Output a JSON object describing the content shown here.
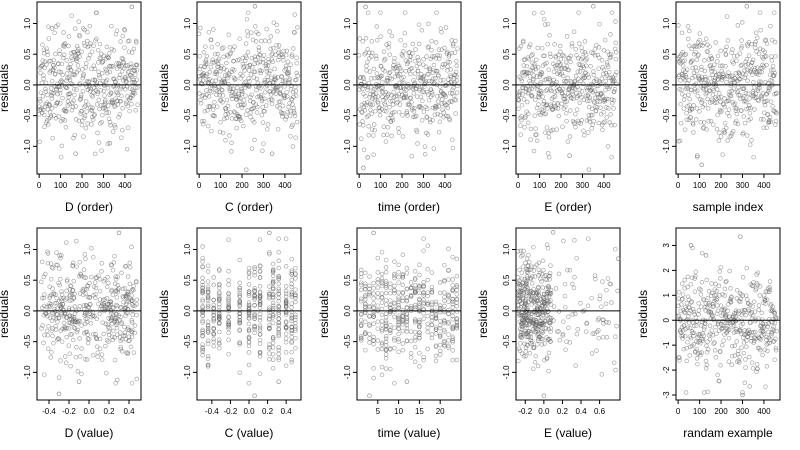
{
  "chart_data": [
    {
      "id": "d-order",
      "type": "scatter",
      "title": "",
      "xlabel": "D (order)",
      "ylabel": "residuals",
      "xlim": [
        -10,
        475
      ],
      "ylim": [
        -1.45,
        1.35
      ],
      "xticks": [
        0,
        100,
        200,
        300,
        400
      ],
      "yticks": [
        -1.0,
        -0.5,
        0.0,
        0.5,
        1.0
      ],
      "ytick_labels": [
        "-1.0",
        "-0.5",
        "0.0",
        "0.5",
        "1.0"
      ],
      "hline": 0,
      "n": 460,
      "sd": 0.42,
      "xdist": "index",
      "seed": 11,
      "marks": [
        {
          "x": 432,
          "y": 1.27
        },
        {
          "x": 170,
          "y": -1.12
        },
        {
          "x": 60,
          "y": 0.92
        },
        {
          "x": 330,
          "y": -0.95
        }
      ]
    },
    {
      "id": "c-order",
      "type": "scatter",
      "title": "",
      "xlabel": "C (order)",
      "ylabel": "residuals",
      "xlim": [
        -10,
        475
      ],
      "ylim": [
        -1.45,
        1.35
      ],
      "xticks": [
        0,
        100,
        200,
        300,
        400
      ],
      "yticks": [
        -1.0,
        -0.5,
        0.0,
        0.5,
        1.0
      ],
      "ytick_labels": [
        "-1.0",
        "-0.5",
        "0.0",
        "0.5",
        "1.0"
      ],
      "hline": 0,
      "n": 460,
      "sd": 0.42,
      "xdist": "index",
      "seed": 23,
      "marks": [
        {
          "x": 260,
          "y": 1.28
        },
        {
          "x": 220,
          "y": -1.38
        },
        {
          "x": 340,
          "y": -1.12
        }
      ]
    },
    {
      "id": "time-order",
      "type": "scatter",
      "title": "",
      "xlabel": "time (order)",
      "ylabel": "residuals",
      "xlim": [
        -10,
        475
      ],
      "ylim": [
        -1.45,
        1.35
      ],
      "xticks": [
        0,
        100,
        200,
        300,
        400
      ],
      "yticks": [
        -1.0,
        -0.5,
        0.0,
        0.5,
        1.0
      ],
      "ytick_labels": [
        "-1.0",
        "-0.5",
        "0.0",
        "0.5",
        "1.0"
      ],
      "hline": 0,
      "n": 460,
      "sd": 0.42,
      "xdist": "index",
      "seed": 37,
      "marks": [
        {
          "x": 30,
          "y": 1.27
        },
        {
          "x": 20,
          "y": -1.35
        },
        {
          "x": 40,
          "y": -1.18
        }
      ]
    },
    {
      "id": "e-order",
      "type": "scatter",
      "title": "",
      "xlabel": "E (order)",
      "ylabel": "residuals",
      "xlim": [
        -10,
        475
      ],
      "ylim": [
        -1.45,
        1.35
      ],
      "xticks": [
        0,
        100,
        200,
        300,
        400
      ],
      "yticks": [
        -1.0,
        -0.5,
        0.0,
        0.5,
        1.0
      ],
      "ytick_labels": [
        "-1.0",
        "-0.5",
        "0.0",
        "0.5",
        "1.0"
      ],
      "hline": 0,
      "n": 460,
      "sd": 0.42,
      "xdist": "index",
      "seed": 41,
      "marks": [
        {
          "x": 350,
          "y": 1.28
        },
        {
          "x": 240,
          "y": -1.15
        },
        {
          "x": 330,
          "y": -1.38
        }
      ]
    },
    {
      "id": "sample-index",
      "type": "scatter",
      "title": "",
      "xlabel": "sample index",
      "ylabel": "residuals",
      "xlim": [
        -10,
        475
      ],
      "ylim": [
        -1.45,
        1.35
      ],
      "xticks": [
        0,
        100,
        200,
        300,
        400
      ],
      "yticks": [
        -1.0,
        -0.5,
        0.0,
        0.5,
        1.0
      ],
      "ytick_labels": [
        "-1.0",
        "-0.5",
        "0.0",
        "0.5",
        "1.0"
      ],
      "hline": 0,
      "n": 460,
      "sd": 0.42,
      "xdist": "index",
      "seed": 53,
      "marks": [
        {
          "x": 320,
          "y": 1.28
        },
        {
          "x": 90,
          "y": -1.15
        },
        {
          "x": 110,
          "y": -1.3
        }
      ]
    },
    {
      "id": "d-value",
      "type": "scatter",
      "title": "",
      "xlabel": "D (value)",
      "ylabel": "residuals",
      "xlim": [
        -0.52,
        0.52
      ],
      "ylim": [
        -1.45,
        1.35
      ],
      "xticks": [
        -0.4,
        -0.2,
        0.0,
        0.2,
        0.4
      ],
      "xtick_labels": [
        "-0.4",
        "-0.2",
        "0.0",
        "0.2",
        "0.4"
      ],
      "yticks": [
        -1.0,
        -0.5,
        0.0,
        0.5,
        1.0
      ],
      "ytick_labels": [
        "-1.0",
        "-0.5",
        "0.0",
        "0.5",
        "1.0"
      ],
      "hline": 0,
      "n": 460,
      "sd": 0.42,
      "xdist": "cont",
      "xspan": [
        -0.48,
        0.48
      ],
      "seed": 61,
      "marks": [
        {
          "x": 0.3,
          "y": 1.27
        },
        {
          "x": -0.1,
          "y": -1.15
        },
        {
          "x": -0.3,
          "y": -1.35
        }
      ]
    },
    {
      "id": "c-value",
      "type": "scatter",
      "title": "",
      "xlabel": "C (value)",
      "ylabel": "residuals",
      "xlim": [
        -0.56,
        0.56
      ],
      "ylim": [
        -1.45,
        1.35
      ],
      "xticks": [
        -0.4,
        -0.2,
        0.0,
        0.2,
        0.4
      ],
      "xtick_labels": [
        "-0.4",
        "-0.2",
        "0.0",
        "0.2",
        "0.4"
      ],
      "yticks": [
        -1.0,
        -0.5,
        0.0,
        0.5,
        1.0
      ],
      "ytick_labels": [
        "-1.0",
        "-0.5",
        "0.0",
        "0.5",
        "1.0"
      ],
      "hline": 0,
      "n": 460,
      "sd": 0.42,
      "xdist": "levels",
      "levels": [
        -0.5,
        -0.44,
        -0.38,
        -0.32,
        -0.22,
        -0.1,
        0,
        0.06,
        0.12,
        0.22,
        0.26,
        0.32,
        0.4,
        0.46,
        0.5
      ],
      "seed": 71,
      "marks": [
        {
          "x": 0.22,
          "y": 1.27
        },
        {
          "x": 0.06,
          "y": -1.38
        },
        {
          "x": 0.32,
          "y": -1.15
        }
      ]
    },
    {
      "id": "time-value",
      "type": "scatter",
      "title": "",
      "xlabel": "time (value)",
      "ylabel": "residuals",
      "xlim": [
        0,
        25
      ],
      "ylim": [
        -1.45,
        1.35
      ],
      "xticks": [
        5,
        10,
        15,
        20
      ],
      "yticks": [
        -1.0,
        -0.5,
        0.0,
        0.5,
        1.0
      ],
      "ytick_labels": [
        "-1.0",
        "-0.5",
        "0.0",
        "0.5",
        "1.0"
      ],
      "hline": 0,
      "n": 460,
      "sd": 0.42,
      "xdist": "levels",
      "levels": [
        1,
        2,
        3,
        4,
        5,
        6,
        7,
        8,
        9,
        10,
        11,
        12,
        13,
        14,
        15,
        16,
        17,
        18,
        19,
        20,
        21,
        22,
        23,
        24
      ],
      "seed": 83,
      "marks": [
        {
          "x": 4,
          "y": 1.27
        },
        {
          "x": 3,
          "y": -1.38
        },
        {
          "x": 12,
          "y": -1.15
        }
      ]
    },
    {
      "id": "e-value",
      "type": "scatter",
      "title": "",
      "xlabel": "E (value)",
      "ylabel": "residuals",
      "xlim": [
        -0.3,
        0.82
      ],
      "ylim": [
        -1.45,
        1.35
      ],
      "xticks": [
        -0.2,
        0.0,
        0.2,
        0.4,
        0.6
      ],
      "xtick_labels": [
        "-0.2",
        "0.0",
        "0.2",
        "0.4",
        "0.6"
      ],
      "yticks": [
        -1.0,
        -0.5,
        0.0,
        0.5,
        1.0
      ],
      "ytick_labels": [
        "-1.0",
        "-0.5",
        "0.0",
        "0.5",
        "1.0"
      ],
      "hline": 0,
      "n": 460,
      "sd": 0.42,
      "xdist": "skew",
      "xspan": [
        -0.28,
        0.8
      ],
      "seed": 97,
      "marks": [
        {
          "x": 0.1,
          "y": 1.28
        },
        {
          "x": 0.8,
          "y": 0.85
        },
        {
          "x": 0,
          "y": -1.38
        }
      ]
    },
    {
      "id": "random-example",
      "type": "scatter",
      "title": "",
      "xlabel": "randam example",
      "ylabel": "residuals",
      "xlim": [
        -10,
        475
      ],
      "ylim": [
        -3.2,
        3.7
      ],
      "xticks": [
        0,
        100,
        200,
        300,
        400
      ],
      "yticks": [
        -3,
        -2,
        -1,
        0,
        1,
        2,
        3
      ],
      "ytick_labels": [
        "-3",
        "-2",
        "-1",
        "0",
        "1",
        "2",
        "3"
      ],
      "hline": 0,
      "n": 460,
      "sd": 1.0,
      "xdist": "index",
      "seed": 109,
      "marks": [
        {
          "x": 290,
          "y": 3.35
        },
        {
          "x": 60,
          "y": 3.0
        },
        {
          "x": 300,
          "y": -3.0
        },
        {
          "x": 130,
          "y": 2.6
        }
      ]
    }
  ],
  "colors": {
    "point": "#606060",
    "axis": "#000000",
    "text": "#000000",
    "background": "#ffffff"
  }
}
